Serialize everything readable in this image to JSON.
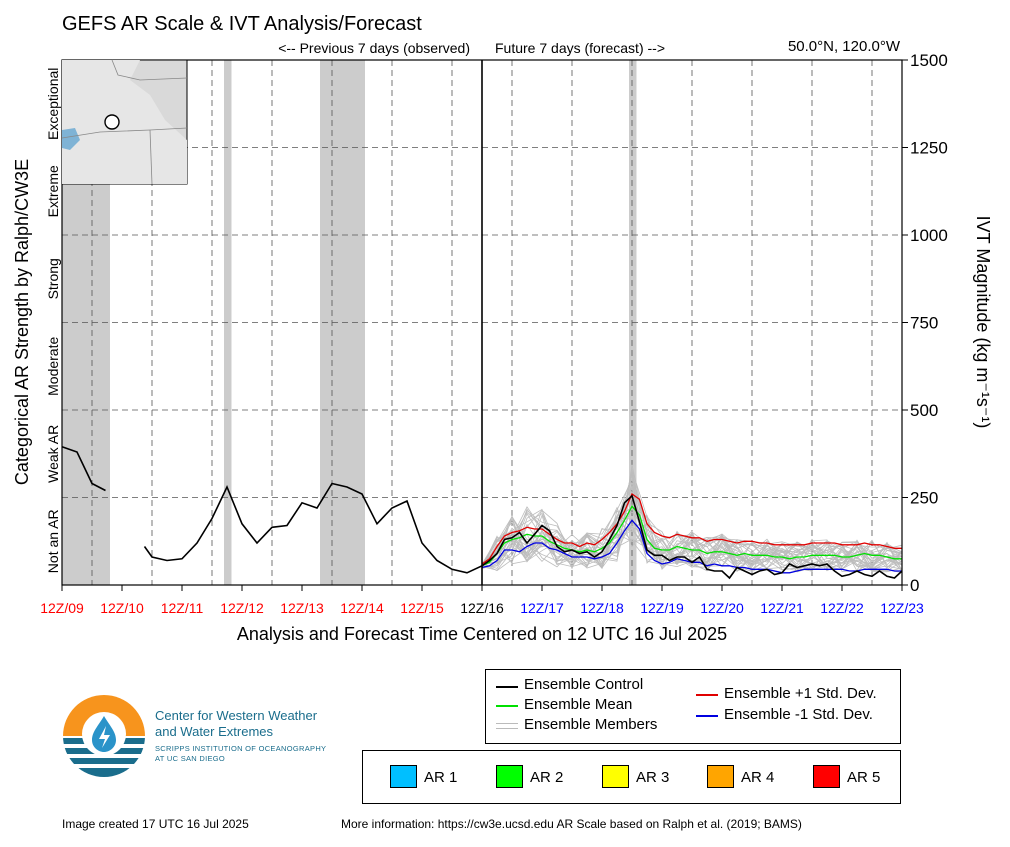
{
  "header": {
    "title": "GEFS AR Scale & IVT Analysis/Forecast",
    "previous_label": "<-- Previous 7 days (observed)",
    "future_label": "Future 7 days (forecast) -->",
    "location": "50.0°N, 120.0°W"
  },
  "colors": {
    "control": "#000000",
    "mean": "#00e000",
    "members": "#bdbdbd",
    "plus_std": "#e00000",
    "minus_std": "#0000e0",
    "observed_tick": "#ff0000",
    "forecast_tick": "#0000ff",
    "shading": "#cccccc",
    "logo_orange": "#f7941d",
    "logo_teal": "#1a6d8c"
  },
  "chart_data": {
    "type": "line",
    "title": "GEFS AR Scale & IVT Analysis/Forecast",
    "xlabel": "Analysis and Forecast Time Centered on 12 UTC 16 Jul 2025",
    "ylabel_right": "IVT Magnitude (kg m⁻¹s⁻¹)",
    "ylabel_left": "Categorical AR Strength by Ralph/CW3E",
    "x_unit": "hours relative to 12Z/16",
    "xlim": [
      -168,
      168
    ],
    "ylim": [
      0,
      1500
    ],
    "yticks": [
      0,
      250,
      500,
      750,
      1000,
      1250,
      1500
    ],
    "x_ticks": [
      {
        "x": -168,
        "label": "12Z/09",
        "group": "observed"
      },
      {
        "x": -144,
        "label": "12Z/10",
        "group": "observed"
      },
      {
        "x": -120,
        "label": "12Z/11",
        "group": "observed"
      },
      {
        "x": -96,
        "label": "12Z/12",
        "group": "observed"
      },
      {
        "x": -72,
        "label": "12Z/13",
        "group": "observed"
      },
      {
        "x": -48,
        "label": "12Z/14",
        "group": "observed"
      },
      {
        "x": -24,
        "label": "12Z/15",
        "group": "observed"
      },
      {
        "x": 0,
        "label": "12Z/16",
        "group": "now"
      },
      {
        "x": 24,
        "label": "12Z/17",
        "group": "forecast"
      },
      {
        "x": 48,
        "label": "12Z/18",
        "group": "forecast"
      },
      {
        "x": 72,
        "label": "12Z/19",
        "group": "forecast"
      },
      {
        "x": 96,
        "label": "12Z/20",
        "group": "forecast"
      },
      {
        "x": 120,
        "label": "12Z/21",
        "group": "forecast"
      },
      {
        "x": 144,
        "label": "12Z/22",
        "group": "forecast"
      },
      {
        "x": 168,
        "label": "12Z/23",
        "group": "forecast"
      }
    ],
    "ar_categories": [
      "Not an AR",
      "Weak AR",
      "Moderate",
      "Strong",
      "Extreme",
      "Exceptional"
    ],
    "ar_category_bounds": [
      0,
      250,
      500,
      750,
      1000,
      1250,
      1500
    ],
    "ar_shading": [
      {
        "x0": -168,
        "x1": -148.8
      },
      {
        "x0": -103.2,
        "x1": -100.2
      },
      {
        "x0": -64.8,
        "x1": -46.8
      },
      {
        "x0": 58.8,
        "x1": 61.8
      }
    ],
    "series": [
      {
        "name": "Ensemble Control",
        "role": "control",
        "segments": [
          {
            "x": [
              -168,
              -162,
              -156,
              -150.6
            ],
            "y": [
              395,
              380,
              290,
              270
            ]
          },
          {
            "x": [
              -135,
              -132,
              -126,
              -120,
              -114,
              -108,
              -102,
              -96,
              -90,
              -84,
              -78,
              -72,
              -66,
              -60,
              -54,
              -48,
              -42,
              -36,
              -30,
              -24,
              -18,
              -12,
              -6,
              0,
              3,
              6,
              9,
              12,
              15,
              18,
              21,
              24,
              27,
              30,
              33,
              36,
              39,
              42,
              45,
              48,
              51,
              54,
              57,
              60,
              63,
              66,
              69,
              72,
              75,
              78,
              81,
              84,
              87,
              90,
              93,
              96,
              99,
              102,
              105,
              108,
              111,
              114,
              117,
              120,
              123,
              126,
              129,
              132,
              135,
              138,
              141,
              144,
              147,
              150,
              153,
              156,
              159,
              162,
              165,
              168
            ],
            "y": [
              110,
              80,
              70,
              75,
              120,
              190,
              280,
              175,
              120,
              165,
              170,
              235,
              220,
              290,
              280,
              260,
              175,
              220,
              240,
              120,
              70,
              45,
              35,
              55,
              70,
              90,
              130,
              135,
              150,
              120,
              145,
              170,
              155,
              110,
              95,
              100,
              90,
              95,
              80,
              95,
              130,
              170,
              235,
              255,
              180,
              100,
              85,
              85,
              70,
              80,
              80,
              65,
              80,
              45,
              40,
              40,
              20,
              50,
              40,
              30,
              40,
              45,
              30,
              35,
              60,
              50,
              55,
              60,
              55,
              60,
              40,
              25,
              30,
              40,
              30,
              25,
              40,
              25,
              20,
              40
            ]
          }
        ]
      },
      {
        "name": "Ensemble Mean",
        "role": "mean",
        "segments": [
          {
            "x": [
              0,
              3,
              6,
              9,
              12,
              15,
              18,
              21,
              24,
              27,
              30,
              33,
              36,
              39,
              42,
              45,
              48,
              51,
              54,
              57,
              60,
              63,
              66,
              69,
              72,
              75,
              78,
              81,
              84,
              87,
              90,
              93,
              96,
              99,
              102,
              105,
              108,
              111,
              114,
              117,
              120,
              123,
              126,
              129,
              132,
              135,
              138,
              141,
              144,
              147,
              150,
              153,
              156,
              159,
              162,
              165,
              168
            ],
            "y": [
              55,
              65,
              90,
              120,
              130,
              135,
              145,
              140,
              140,
              125,
              115,
              105,
              100,
              95,
              100,
              95,
              105,
              120,
              150,
              185,
              225,
              200,
              130,
              105,
              100,
              100,
              110,
              105,
              100,
              100,
              90,
              95,
              95,
              90,
              85,
              90,
              85,
              85,
              85,
              80,
              80,
              75,
              80,
              80,
              85,
              85,
              85,
              85,
              80,
              80,
              85,
              90,
              85,
              85,
              80,
              75,
              75
            ]
          }
        ]
      },
      {
        "name": "Ensemble +1 Std. Dev.",
        "role": "plus_std",
        "segments": [
          {
            "x": [
              0,
              3,
              6,
              9,
              12,
              15,
              18,
              21,
              24,
              27,
              30,
              33,
              36,
              39,
              42,
              45,
              48,
              51,
              54,
              57,
              60,
              63,
              66,
              69,
              72,
              75,
              78,
              81,
              84,
              87,
              90,
              93,
              96,
              99,
              102,
              105,
              108,
              111,
              114,
              117,
              120,
              123,
              126,
              129,
              132,
              135,
              138,
              141,
              144,
              147,
              150,
              153,
              156,
              159,
              162,
              165,
              168
            ],
            "y": [
              60,
              75,
              110,
              140,
              150,
              155,
              165,
              160,
              160,
              145,
              130,
              120,
              120,
              110,
              120,
              115,
              130,
              150,
              175,
              210,
              260,
              245,
              175,
              150,
              140,
              135,
              145,
              140,
              135,
              135,
              125,
              130,
              130,
              125,
              120,
              125,
              125,
              120,
              120,
              115,
              115,
              115,
              115,
              115,
              120,
              120,
              120,
              120,
              115,
              115,
              115,
              120,
              115,
              115,
              110,
              105,
              105
            ]
          }
        ]
      },
      {
        "name": "Ensemble -1 Std. Dev.",
        "role": "minus_std",
        "segments": [
          {
            "x": [
              0,
              3,
              6,
              9,
              12,
              15,
              18,
              21,
              24,
              27,
              30,
              33,
              36,
              39,
              42,
              45,
              48,
              51,
              54,
              57,
              60,
              63,
              66,
              69,
              72,
              75,
              78,
              81,
              84,
              87,
              90,
              93,
              96,
              99,
              102,
              105,
              108,
              111,
              114,
              117,
              120,
              123,
              126,
              129,
              132,
              135,
              138,
              141,
              144,
              147,
              150,
              153,
              156,
              159,
              162,
              165,
              168
            ],
            "y": [
              50,
              55,
              70,
              100,
              100,
              95,
              110,
              120,
              120,
              105,
              100,
              90,
              80,
              80,
              80,
              75,
              80,
              90,
              120,
              155,
              185,
              160,
              90,
              70,
              60,
              65,
              75,
              70,
              65,
              65,
              55,
              60,
              55,
              55,
              50,
              50,
              45,
              45,
              45,
              40,
              35,
              35,
              40,
              45,
              45,
              45,
              45,
              45,
              45,
              40,
              40,
              45,
              45,
              45,
              45,
              40,
              40
            ]
          }
        ]
      }
    ],
    "member_base_x": [
      0,
      6,
      12,
      18,
      24,
      30,
      36,
      42,
      48,
      54,
      60,
      66,
      72,
      78,
      84,
      90,
      96,
      102,
      108,
      114,
      120,
      126,
      132,
      138,
      144,
      150,
      156,
      162,
      168
    ],
    "member_base_y": [
      55,
      90,
      130,
      145,
      140,
      115,
      100,
      100,
      105,
      150,
      225,
      130,
      100,
      110,
      100,
      90,
      95,
      85,
      85,
      85,
      80,
      80,
      85,
      85,
      80,
      85,
      85,
      80,
      75
    ],
    "member_count": 30
  },
  "legend_lines": {
    "control": "Ensemble Control",
    "mean": "Ensemble Mean",
    "members": "Ensemble Members",
    "plus_std": "Ensemble +1 Std. Dev.",
    "minus_std": "Ensemble -1 Std. Dev."
  },
  "legend_ar": [
    {
      "label": "AR 1",
      "color": "#00bfff"
    },
    {
      "label": "AR 2",
      "color": "#00ff00"
    },
    {
      "label": "AR 3",
      "color": "#ffff00"
    },
    {
      "label": "AR 4",
      "color": "#ffa500"
    },
    {
      "label": "AR 5",
      "color": "#ff0000"
    }
  ],
  "logo": {
    "line1": "Center for Western Weather",
    "line2": "and Water Extremes",
    "line3": "SCRIPPS INSTITUTION OF OCEANOGRAPHY",
    "line4": "AT UC SAN DIEGO"
  },
  "footer": {
    "created": "Image created 17 UTC 16 Jul 2025",
    "more_info": "More information: https://cw3e.ucsd.edu AR Scale based on Ralph et al. (2019; BAMS)"
  }
}
